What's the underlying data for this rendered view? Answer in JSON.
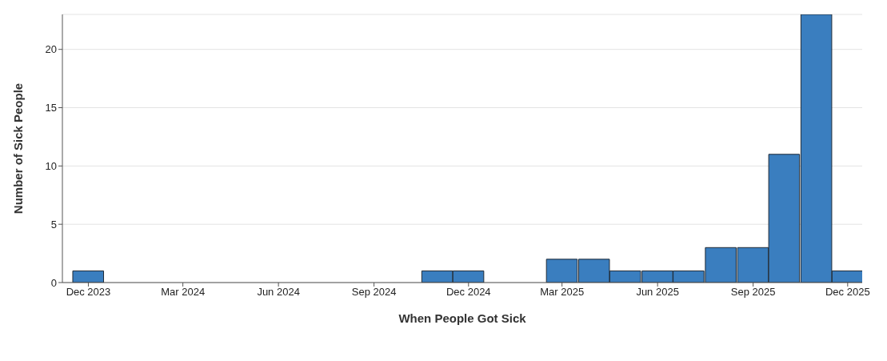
{
  "chart_data": {
    "type": "bar",
    "xlabel": "When People Got Sick",
    "ylabel": "Number of Sick People",
    "x": [
      "2023-12",
      "2024-11",
      "2024-12",
      "2025-03",
      "2025-04",
      "2025-05",
      "2025-06",
      "2025-07",
      "2025-08",
      "2025-09",
      "2025-10",
      "2025-11",
      "2025-12"
    ],
    "values": [
      1,
      1,
      1,
      2,
      2,
      1,
      1,
      1,
      3,
      3,
      11,
      23,
      1
    ],
    "color": "#3a7ebf",
    "xlim": [
      "2023-11-06",
      "2025-12-15"
    ],
    "xticks": [
      {
        "value": "2023-12",
        "label": "Dec 2023"
      },
      {
        "value": "2024-03",
        "label": "Mar 2024"
      },
      {
        "value": "2024-06",
        "label": "Jun 2024"
      },
      {
        "value": "2024-09",
        "label": "Sep 2024"
      },
      {
        "value": "2024-12",
        "label": "Dec 2024"
      },
      {
        "value": "2025-03",
        "label": "Mar 2025"
      },
      {
        "value": "2025-06",
        "label": "Jun 2025"
      },
      {
        "value": "2025-09",
        "label": "Sep 2025"
      },
      {
        "value": "2025-12",
        "label": "Dec 2025"
      }
    ],
    "ylim": [
      0,
      23
    ],
    "yticks": [
      0,
      5,
      10,
      15,
      20
    ],
    "grid": "y"
  }
}
